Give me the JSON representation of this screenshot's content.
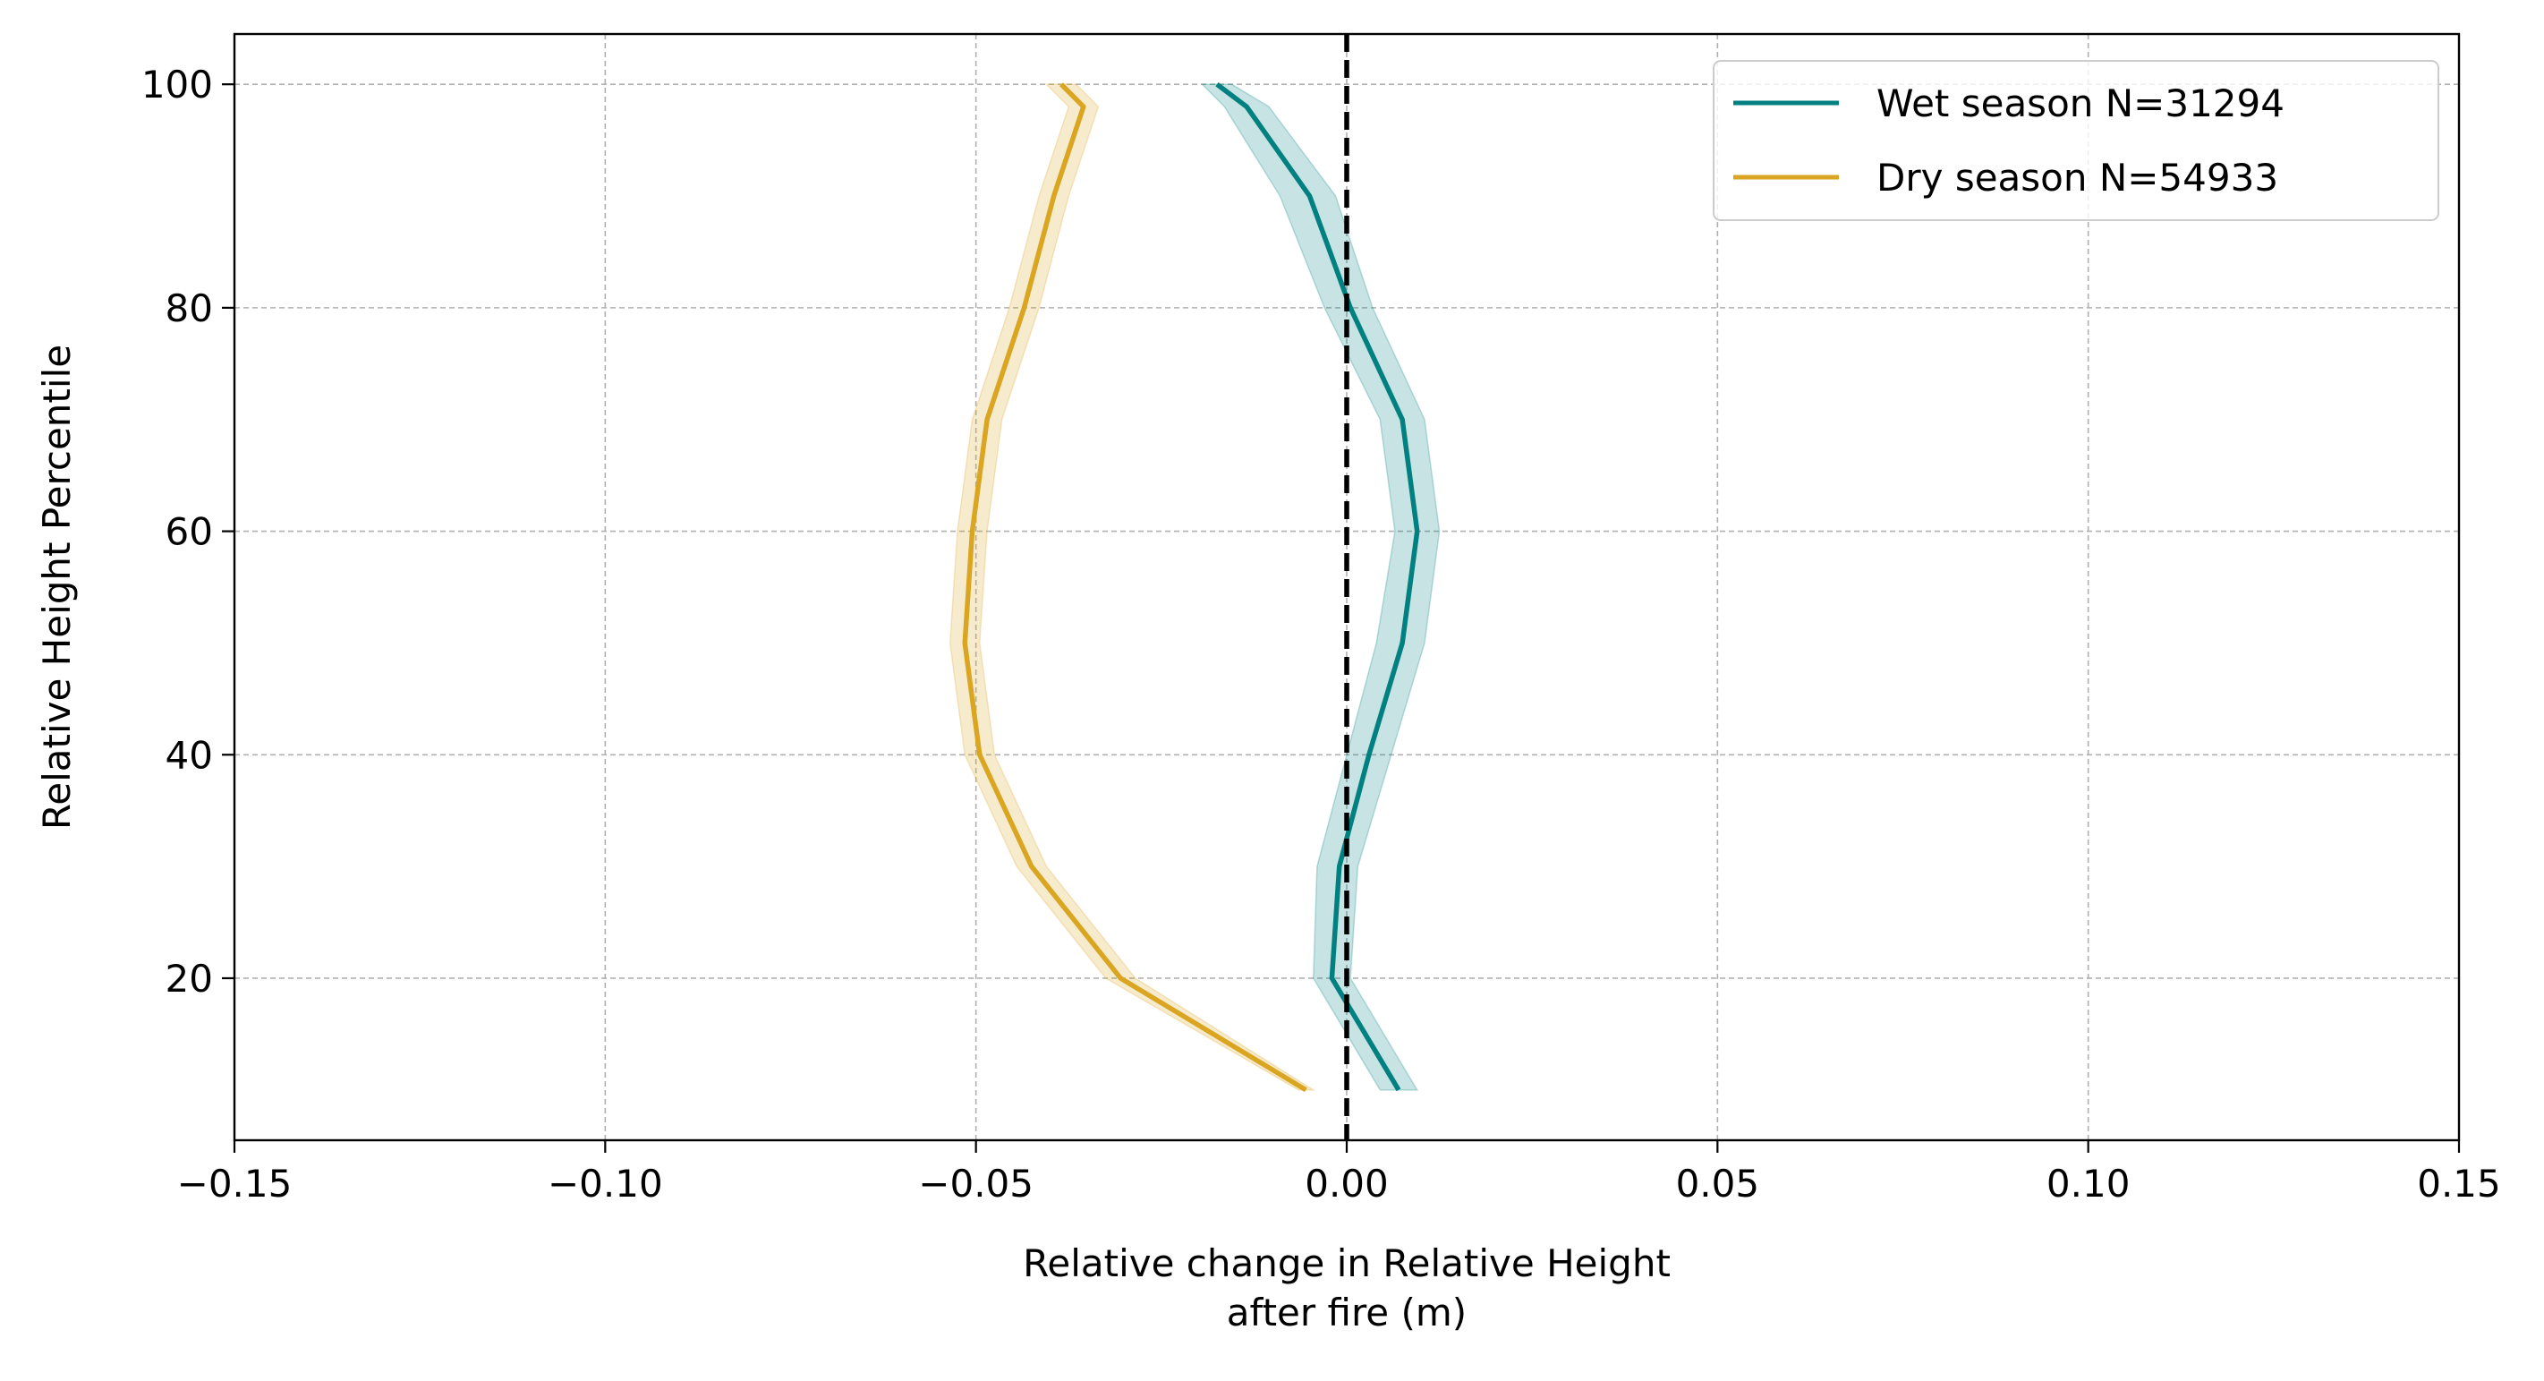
{
  "chart_data": {
    "type": "line",
    "xlabel_line1": "Relative change in Relative Height",
    "xlabel_line2": "after fire (m)",
    "ylabel": "Relative Height Percentile",
    "xlim": [
      -0.15,
      0.15
    ],
    "ylim": [
      5.5,
      104.5
    ],
    "xticks": [
      -0.15,
      -0.1,
      -0.05,
      0.0,
      0.05,
      0.1,
      0.15
    ],
    "xtick_labels": [
      "−0.15",
      "−0.10",
      "−0.05",
      "0.00",
      "0.05",
      "0.10",
      "0.15"
    ],
    "yticks": [
      20,
      40,
      60,
      80,
      100
    ],
    "ytick_labels": [
      "20",
      "40",
      "60",
      "80",
      "100"
    ],
    "grid": true,
    "legend_position": "top-right",
    "reference_line": {
      "x": 0.0,
      "style": "dashed",
      "color": "#000000"
    },
    "series": [
      {
        "name": "Wet season N=31294",
        "color": "#008080",
        "y": [
          10,
          20,
          30,
          40,
          50,
          60,
          70,
          80,
          90,
          98,
          100
        ],
        "x": [
          0.007,
          -0.002,
          -0.001,
          0.003,
          0.0075,
          0.0095,
          0.0075,
          0.0005,
          -0.005,
          -0.0135,
          -0.0175
        ],
        "x_low": [
          0.0045,
          -0.0045,
          -0.004,
          0.0,
          0.004,
          0.0065,
          0.0045,
          -0.003,
          -0.009,
          -0.0165,
          -0.0195
        ],
        "x_high": [
          0.0095,
          0.0005,
          0.0015,
          0.006,
          0.0105,
          0.0125,
          0.0105,
          0.0035,
          -0.0015,
          -0.0105,
          -0.0155
        ]
      },
      {
        "name": "Dry season N=54933",
        "color": "#DAA520",
        "y": [
          10,
          20,
          30,
          40,
          50,
          60,
          70,
          80,
          90,
          98,
          100
        ],
        "x": [
          -0.0055,
          -0.0305,
          -0.0425,
          -0.0495,
          -0.0515,
          -0.0505,
          -0.0485,
          -0.0435,
          -0.0395,
          -0.0355,
          -0.0385
        ],
        "x_low": [
          -0.0065,
          -0.0325,
          -0.0445,
          -0.0515,
          -0.0535,
          -0.0525,
          -0.0505,
          -0.0455,
          -0.0415,
          -0.0375,
          -0.0405
        ],
        "x_high": [
          -0.0045,
          -0.0285,
          -0.0405,
          -0.0475,
          -0.0495,
          -0.0485,
          -0.0465,
          -0.0415,
          -0.0375,
          -0.0335,
          -0.0365
        ]
      }
    ]
  }
}
